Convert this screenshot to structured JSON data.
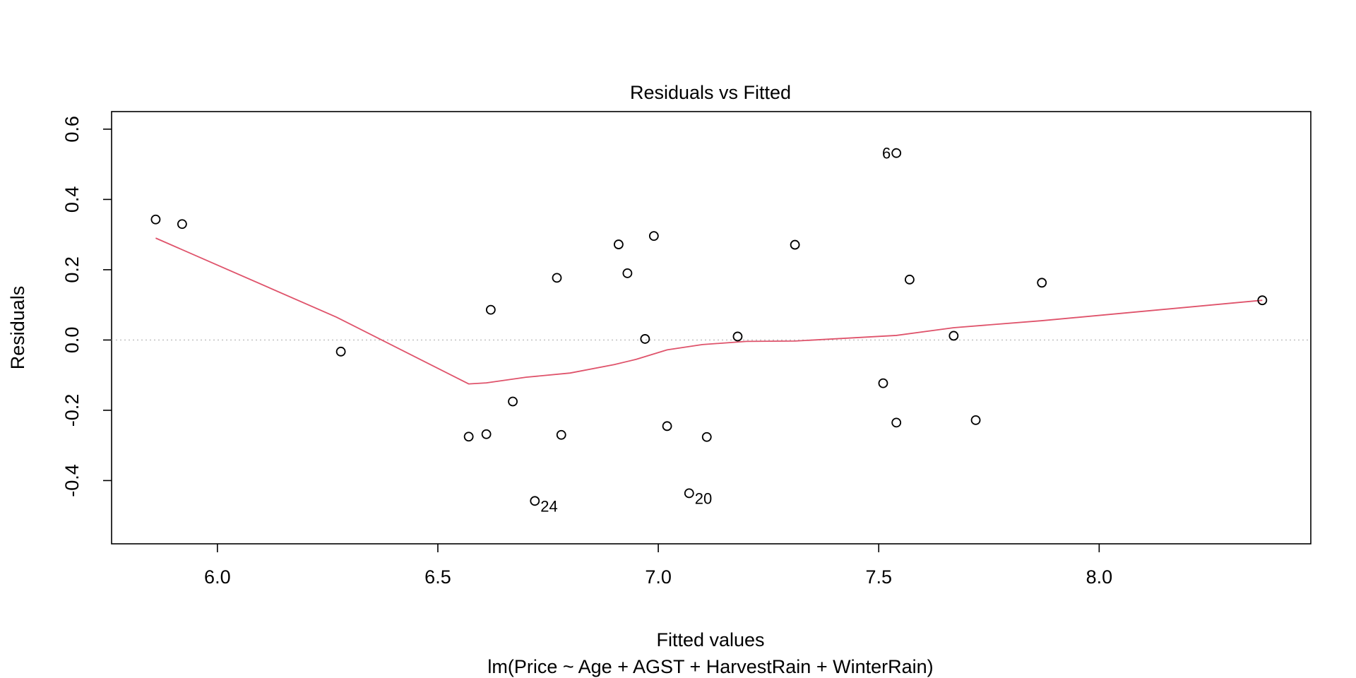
{
  "chart_data": {
    "type": "scatter",
    "title": "Residuals vs Fitted",
    "xlabel": "Fitted values",
    "ylabel": "Residuals",
    "subtitle": "lm(Price ~ Age + AGST + HarvestRain + WinterRain)",
    "xlim": [
      5.76,
      8.48
    ],
    "ylim": [
      -0.58,
      0.65
    ],
    "x_ticks": [
      6.0,
      6.5,
      7.0,
      7.5,
      8.0
    ],
    "x_tick_labels": [
      "6.0",
      "6.5",
      "7.0",
      "7.5",
      "8.0"
    ],
    "y_ticks": [
      -0.4,
      -0.2,
      0.0,
      0.2,
      0.4,
      0.6
    ],
    "y_tick_labels": [
      "-0.4",
      "-0.2",
      "0.0",
      "0.2",
      "0.4",
      "0.6"
    ],
    "grid": false,
    "reference_line": {
      "y": 0.0,
      "style": "dotted",
      "color": "#bebebe"
    },
    "points": [
      {
        "x": 5.86,
        "y": 0.343,
        "label": ""
      },
      {
        "x": 5.92,
        "y": 0.33,
        "label": ""
      },
      {
        "x": 6.28,
        "y": -0.033,
        "label": ""
      },
      {
        "x": 6.57,
        "y": -0.275,
        "label": ""
      },
      {
        "x": 6.61,
        "y": -0.268,
        "label": ""
      },
      {
        "x": 6.62,
        "y": 0.086,
        "label": ""
      },
      {
        "x": 6.67,
        "y": -0.175,
        "label": ""
      },
      {
        "x": 6.72,
        "y": -0.458,
        "label": "24"
      },
      {
        "x": 6.77,
        "y": 0.177,
        "label": ""
      },
      {
        "x": 6.78,
        "y": -0.27,
        "label": ""
      },
      {
        "x": 6.91,
        "y": 0.272,
        "label": ""
      },
      {
        "x": 6.93,
        "y": 0.19,
        "label": ""
      },
      {
        "x": 6.97,
        "y": 0.003,
        "label": ""
      },
      {
        "x": 6.99,
        "y": 0.296,
        "label": ""
      },
      {
        "x": 7.02,
        "y": -0.245,
        "label": ""
      },
      {
        "x": 7.07,
        "y": -0.436,
        "label": "20"
      },
      {
        "x": 7.11,
        "y": -0.276,
        "label": ""
      },
      {
        "x": 7.18,
        "y": 0.01,
        "label": ""
      },
      {
        "x": 7.31,
        "y": 0.271,
        "label": ""
      },
      {
        "x": 7.51,
        "y": -0.123,
        "label": ""
      },
      {
        "x": 7.54,
        "y": 0.532,
        "label": "6"
      },
      {
        "x": 7.54,
        "y": -0.235,
        "label": ""
      },
      {
        "x": 7.57,
        "y": 0.172,
        "label": ""
      },
      {
        "x": 7.67,
        "y": 0.012,
        "label": ""
      },
      {
        "x": 7.72,
        "y": -0.228,
        "label": ""
      },
      {
        "x": 7.87,
        "y": 0.163,
        "label": ""
      },
      {
        "x": 8.37,
        "y": 0.113,
        "label": ""
      }
    ],
    "smooth_line": {
      "color": "#df536b",
      "points": [
        [
          5.86,
          0.29
        ],
        [
          6.27,
          0.065
        ],
        [
          6.57,
          -0.125
        ],
        [
          6.61,
          -0.122
        ],
        [
          6.7,
          -0.106
        ],
        [
          6.8,
          -0.094
        ],
        [
          6.9,
          -0.07
        ],
        [
          6.95,
          -0.055
        ],
        [
          7.02,
          -0.028
        ],
        [
          7.1,
          -0.013
        ],
        [
          7.2,
          -0.004
        ],
        [
          7.31,
          -0.003
        ],
        [
          7.54,
          0.013
        ],
        [
          7.67,
          0.035
        ],
        [
          7.87,
          0.055
        ],
        [
          8.37,
          0.113
        ]
      ]
    }
  }
}
